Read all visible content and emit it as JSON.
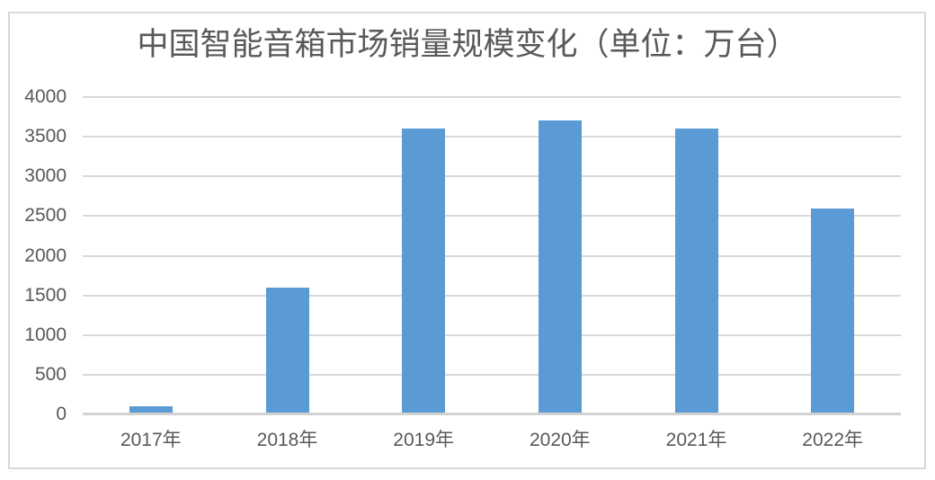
{
  "chart": {
    "colors": {
      "background": "#ffffff",
      "frame_border": "#d9d9d9",
      "gridline": "#d9d9d9",
      "axis_line": "#d2d2d2",
      "bar": "#5b9bd5",
      "tick_label": "#595959",
      "title": "#595959"
    }
  },
  "chart_data": {
    "type": "bar",
    "title": "中国智能音箱市场销量规模变化（单位：万台）",
    "unit": "万台",
    "categories": [
      "2017年",
      "2018年",
      "2019年",
      "2020年",
      "2021年",
      "2022年"
    ],
    "values": [
      100,
      1600,
      3600,
      3700,
      3600,
      2600
    ],
    "xlabel": "",
    "ylabel": "",
    "ylim": [
      0,
      4000
    ],
    "yticks": [
      0,
      500,
      1000,
      1500,
      2000,
      2500,
      3000,
      3500,
      4000
    ],
    "grid": true,
    "legend": false,
    "bar_color": "#5b9bd5"
  }
}
